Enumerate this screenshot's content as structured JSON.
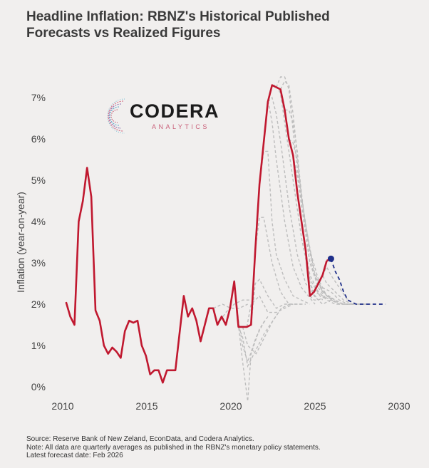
{
  "title": {
    "line1": "Headline Inflation: RBNZ's Historical Published",
    "line2": "Forecasts vs Realized Figures"
  },
  "logo": {
    "word": "CODERA",
    "sub": "ANALYTICS",
    "icon": "codera-swirl-icon"
  },
  "footer": {
    "source": "Source: Reserve Bank of New Zeland, EconData, and Codera Analytics.",
    "note": "Note: All data are quarterly averages as published in the RBNZ's monetary policy statements.",
    "latest": "Latest forecast date: Feb 2026"
  },
  "colors": {
    "realized": "#c0182f",
    "forecast_past": "#bdbdbd",
    "forecast_latest": "#1f2f8a",
    "background": "#f1efee"
  },
  "chart_data": {
    "type": "line",
    "title": "Headline Inflation: RBNZ's Historical Published Forecasts vs Realized Figures",
    "xlabel": "",
    "ylabel": "Inflation (year-on-year)",
    "xlim": [
      2009.5,
      2030.5
    ],
    "ylim": [
      -0.6,
      7.6
    ],
    "xticks": [
      2010,
      2015,
      2020,
      2025,
      2030
    ],
    "xtick_labels": [
      "2010",
      "2015",
      "2020",
      "2025",
      "2030"
    ],
    "yticks": [
      0,
      1,
      2,
      3,
      4,
      5,
      6,
      7
    ],
    "ytick_labels": [
      "0%",
      "1%",
      "2%",
      "3%",
      "4%",
      "5%",
      "6%",
      "7%"
    ],
    "grid": false,
    "legend": "none",
    "series": [
      {
        "name": "Realized",
        "style": "solid",
        "x": [
          2010.2,
          2010.45,
          2010.7,
          2010.95,
          2011.2,
          2011.45,
          2011.7,
          2011.95,
          2012.2,
          2012.45,
          2012.7,
          2012.95,
          2013.2,
          2013.45,
          2013.7,
          2013.95,
          2014.2,
          2014.45,
          2014.7,
          2014.95,
          2015.2,
          2015.45,
          2015.7,
          2015.95,
          2016.2,
          2016.45,
          2016.7,
          2016.95,
          2017.2,
          2017.45,
          2017.7,
          2017.95,
          2018.2,
          2018.45,
          2018.7,
          2018.95,
          2019.2,
          2019.45,
          2019.7,
          2019.95,
          2020.2,
          2020.45,
          2020.7,
          2020.95,
          2021.2,
          2021.45,
          2021.7,
          2021.95,
          2022.2,
          2022.45,
          2022.7,
          2022.95,
          2023.2,
          2023.45,
          2023.7,
          2023.95,
          2024.2,
          2024.45,
          2024.7,
          2024.95,
          2025.2,
          2025.45,
          2025.7
        ],
        "y": [
          2.05,
          1.7,
          1.5,
          4.0,
          4.5,
          5.3,
          4.6,
          1.85,
          1.6,
          1.0,
          0.8,
          0.95,
          0.85,
          0.7,
          1.35,
          1.6,
          1.55,
          1.6,
          1.0,
          0.75,
          0.3,
          0.4,
          0.4,
          0.1,
          0.4,
          0.4,
          0.4,
          1.3,
          2.2,
          1.7,
          1.9,
          1.6,
          1.1,
          1.5,
          1.9,
          1.9,
          1.5,
          1.7,
          1.5,
          1.9,
          2.55,
          1.45,
          1.45,
          1.45,
          1.5,
          3.3,
          4.9,
          5.9,
          6.9,
          7.3,
          7.25,
          7.2,
          6.7,
          6.0,
          5.6,
          4.7,
          4.0,
          3.3,
          2.2,
          2.3,
          2.5,
          2.7,
          3.05
        ]
      },
      {
        "name": "Latest realized point (Feb 2026)",
        "style": "marker",
        "x": [
          2025.95
        ],
        "y": [
          3.1
        ]
      },
      {
        "name": "Latest forecast (Feb 2026)",
        "style": "dashed",
        "x": [
          2025.95,
          2026.2,
          2026.45,
          2026.7,
          2026.95,
          2027.2,
          2027.45,
          2027.7,
          2028.0,
          2028.5,
          2029.0,
          2029.2
        ],
        "y": [
          3.1,
          2.8,
          2.6,
          2.3,
          2.1,
          2.05,
          2.0,
          2.0,
          2.0,
          2.0,
          2.0,
          2.0
        ]
      },
      {
        "name": "Forecast 2019a",
        "style": "dashed",
        "x": [
          2018.95,
          2019.5,
          2020.0,
          2020.5,
          2021.0
        ],
        "y": [
          1.9,
          2.0,
          1.9,
          1.9,
          2.0
        ]
      },
      {
        "name": "Forecast 2019b",
        "style": "dashed",
        "x": [
          2019.2,
          2019.7,
          2020.2,
          2020.7,
          2021.2
        ],
        "y": [
          1.5,
          1.8,
          2.0,
          2.1,
          2.1
        ]
      },
      {
        "name": "Forecast 2020a",
        "style": "dashed",
        "x": [
          2019.95,
          2020.2,
          2020.45,
          2020.7,
          2021.0,
          2021.5,
          2022.0
        ],
        "y": [
          1.9,
          2.6,
          1.6,
          1.0,
          0.6,
          1.2,
          1.6
        ]
      },
      {
        "name": "Forecast 2020b",
        "style": "dashed",
        "x": [
          2020.2,
          2020.45,
          2020.7,
          2021.0,
          2021.2,
          2021.45,
          2021.7,
          2022.2
        ],
        "y": [
          2.5,
          1.5,
          0.6,
          -0.35,
          0.8,
          1.1,
          1.4,
          1.7
        ]
      },
      {
        "name": "Forecast 2020c",
        "style": "dashed",
        "x": [
          2020.45,
          2020.7,
          2021.0,
          2021.5,
          2022.0,
          2022.5,
          2023.0
        ],
        "y": [
          1.45,
          1.2,
          0.5,
          0.9,
          1.3,
          1.6,
          1.9
        ]
      },
      {
        "name": "Forecast 2020d",
        "style": "dashed",
        "x": [
          2020.7,
          2021.0,
          2021.5,
          2022.0,
          2022.5,
          2023.0,
          2023.5
        ],
        "y": [
          1.45,
          1.0,
          0.8,
          1.2,
          1.6,
          1.9,
          2.0
        ]
      },
      {
        "name": "Forecast 2021a",
        "style": "dashed",
        "x": [
          2020.95,
          2021.2,
          2021.7,
          2022.2,
          2022.7,
          2023.2,
          2023.7
        ],
        "y": [
          1.45,
          2.0,
          2.2,
          1.8,
          1.8,
          1.9,
          2.0
        ]
      },
      {
        "name": "Forecast 2021b",
        "style": "dashed",
        "x": [
          2021.2,
          2021.45,
          2021.7,
          2022.2,
          2022.7,
          2023.2,
          2024.2
        ],
        "y": [
          1.5,
          2.5,
          2.6,
          2.2,
          1.9,
          2.0,
          2.0
        ]
      },
      {
        "name": "Forecast 2021c",
        "style": "dashed",
        "x": [
          2021.45,
          2021.7,
          2021.95,
          2022.45,
          2022.95,
          2023.45,
          2024.45
        ],
        "y": [
          3.3,
          4.1,
          4.1,
          3.0,
          2.3,
          2.0,
          2.0
        ]
      },
      {
        "name": "Forecast 2021d",
        "style": "dashed",
        "x": [
          2021.7,
          2021.95,
          2022.2,
          2022.45,
          2022.7,
          2023.2,
          2023.7,
          2024.7
        ],
        "y": [
          4.9,
          5.7,
          5.7,
          4.0,
          3.2,
          2.6,
          2.2,
          2.0
        ]
      },
      {
        "name": "Forecast 2022a",
        "style": "dashed",
        "x": [
          2021.95,
          2022.2,
          2022.45,
          2022.7,
          2023.2,
          2023.7,
          2024.2,
          2025.0
        ],
        "y": [
          5.9,
          6.95,
          6.4,
          5.5,
          4.0,
          2.9,
          2.4,
          2.0
        ]
      },
      {
        "name": "Forecast 2022b",
        "style": "dashed",
        "x": [
          2022.2,
          2022.45,
          2022.7,
          2023.0,
          2023.45,
          2023.95,
          2024.45,
          2025.2
        ],
        "y": [
          6.9,
          7.0,
          6.6,
          5.8,
          4.4,
          3.2,
          2.5,
          2.1
        ]
      },
      {
        "name": "Forecast 2022c",
        "style": "dashed",
        "x": [
          2022.45,
          2022.7,
          2022.95,
          2023.2,
          2023.7,
          2024.2,
          2024.7,
          2025.45
        ],
        "y": [
          7.3,
          7.3,
          7.1,
          6.4,
          5.0,
          3.6,
          2.6,
          2.1
        ]
      },
      {
        "name": "Forecast 2022d",
        "style": "dashed",
        "x": [
          2022.7,
          2022.95,
          2023.2,
          2023.45,
          2023.7,
          2024.2,
          2024.7,
          2025.2,
          2025.7
        ],
        "y": [
          7.25,
          7.5,
          7.5,
          7.2,
          6.2,
          4.4,
          3.0,
          2.4,
          2.1
        ]
      },
      {
        "name": "Forecast 2023a",
        "style": "dashed",
        "x": [
          2022.95,
          2023.2,
          2023.45,
          2023.7,
          2024.0,
          2024.45,
          2024.95,
          2025.45,
          2026.0
        ],
        "y": [
          7.2,
          7.4,
          7.3,
          6.6,
          5.4,
          3.8,
          2.7,
          2.3,
          2.1
        ]
      },
      {
        "name": "Forecast 2023b",
        "style": "dashed",
        "x": [
          2023.2,
          2023.45,
          2023.7,
          2023.95,
          2024.2,
          2024.7,
          2025.2,
          2025.7,
          2026.2
        ],
        "y": [
          6.7,
          6.7,
          6.4,
          5.7,
          4.6,
          3.3,
          2.6,
          2.2,
          2.1
        ]
      },
      {
        "name": "Forecast 2023c",
        "style": "dashed",
        "x": [
          2023.45,
          2023.7,
          2023.95,
          2024.2,
          2024.45,
          2024.95,
          2025.45,
          2026.2
        ],
        "y": [
          6.0,
          5.9,
          5.5,
          4.6,
          3.9,
          2.8,
          2.3,
          2.1
        ]
      },
      {
        "name": "Forecast 2023d",
        "style": "dashed",
        "x": [
          2023.7,
          2023.95,
          2024.2,
          2024.45,
          2024.7,
          2025.2,
          2025.7,
          2026.45
        ],
        "y": [
          5.6,
          5.1,
          4.4,
          3.7,
          3.0,
          2.5,
          2.2,
          2.0
        ]
      },
      {
        "name": "Forecast 2024a",
        "style": "dashed",
        "x": [
          2023.95,
          2024.2,
          2024.45,
          2024.7,
          2025.2,
          2025.7,
          2026.2,
          2026.95
        ],
        "y": [
          4.7,
          4.0,
          3.3,
          2.7,
          2.3,
          2.1,
          2.0,
          2.0
        ]
      },
      {
        "name": "Forecast 2024b",
        "style": "dashed",
        "x": [
          2024.2,
          2024.45,
          2024.7,
          2024.95,
          2025.45,
          2025.95,
          2026.7,
          2027.2
        ],
        "y": [
          4.0,
          3.2,
          2.5,
          2.3,
          2.2,
          2.1,
          2.0,
          2.0
        ]
      },
      {
        "name": "Forecast 2024c",
        "style": "dashed",
        "x": [
          2024.45,
          2024.7,
          2024.95,
          2025.45,
          2025.95,
          2026.45,
          2027.45
        ],
        "y": [
          3.3,
          2.5,
          2.2,
          2.0,
          2.1,
          2.0,
          2.0
        ]
      },
      {
        "name": "Forecast 2024d",
        "style": "dashed",
        "x": [
          2024.7,
          2024.95,
          2025.2,
          2025.7,
          2026.2,
          2026.7,
          2027.7
        ],
        "y": [
          2.2,
          2.1,
          2.1,
          2.2,
          2.1,
          2.0,
          2.0
        ]
      },
      {
        "name": "Forecast 2025a",
        "style": "dashed",
        "x": [
          2024.95,
          2025.2,
          2025.45,
          2025.95,
          2026.45,
          2026.95,
          2027.95
        ],
        "y": [
          2.3,
          2.5,
          2.4,
          2.3,
          2.1,
          2.0,
          2.0
        ]
      },
      {
        "name": "Forecast 2025b",
        "style": "dashed",
        "x": [
          2025.2,
          2025.45,
          2025.7,
          2026.2,
          2026.7,
          2027.2,
          2028.2
        ],
        "y": [
          2.5,
          2.7,
          2.5,
          2.3,
          2.1,
          2.0,
          2.0
        ]
      },
      {
        "name": "Forecast 2025c",
        "style": "dashed",
        "x": [
          2025.45,
          2025.7,
          2025.95,
          2026.45,
          2026.95,
          2027.45,
          2028.45
        ],
        "y": [
          2.7,
          2.9,
          2.7,
          2.4,
          2.1,
          2.0,
          2.0
        ]
      }
    ]
  }
}
